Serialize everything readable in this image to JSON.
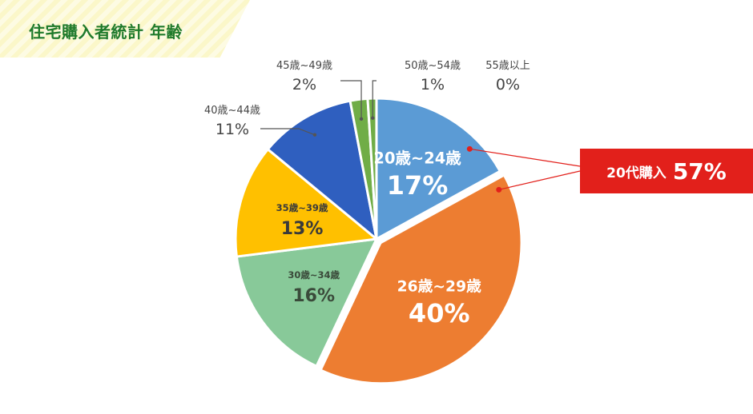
{
  "title": "住宅購入者統計 年齢",
  "callout": {
    "label": "20代購入",
    "value": "57%"
  },
  "colors": {
    "title": "#1f7a2b",
    "callout": "#e2201b",
    "leader": "#555555"
  },
  "chart_data": {
    "type": "pie",
    "title": "住宅購入者統計 年齢",
    "slices": [
      {
        "label": "20歳~24歳",
        "value": 17,
        "percent_label": "17%",
        "color": "#5b9bd5",
        "label_position": "inside",
        "text_color": "#ffffff"
      },
      {
        "label": "26歳~29歳",
        "value": 40,
        "percent_label": "40%",
        "color": "#ed7d31",
        "label_position": "inside",
        "text_color": "#ffffff"
      },
      {
        "label": "30歳~34歳",
        "value": 16,
        "percent_label": "16%",
        "color": "#88c999",
        "label_position": "inside",
        "text_color": "#3a4a3a"
      },
      {
        "label": "35歳~39歳",
        "value": 13,
        "percent_label": "13%",
        "color": "#ffc000",
        "label_position": "inside",
        "text_color": "#3a3a3a"
      },
      {
        "label": "40歳~44歳",
        "value": 11,
        "percent_label": "11%",
        "color": "#2f5fbf",
        "label_position": "outside",
        "text_color": "#444444"
      },
      {
        "label": "45歳~49歳",
        "value": 2,
        "percent_label": "2%",
        "color": "#70ad47",
        "label_position": "outside",
        "text_color": "#444444"
      },
      {
        "label": "50歳~54歳",
        "value": 1,
        "percent_label": "1%",
        "color": "#70ad47",
        "label_position": "outside",
        "text_color": "#444444"
      },
      {
        "label": "55歳以上",
        "value": 0,
        "percent_label": "0%",
        "color": "#70ad47",
        "label_position": "outside",
        "text_color": "#444444"
      }
    ],
    "annotation": {
      "text": "20代購入 57%",
      "slices": [
        "20歳~24歳",
        "26歳~29歳"
      ]
    }
  }
}
